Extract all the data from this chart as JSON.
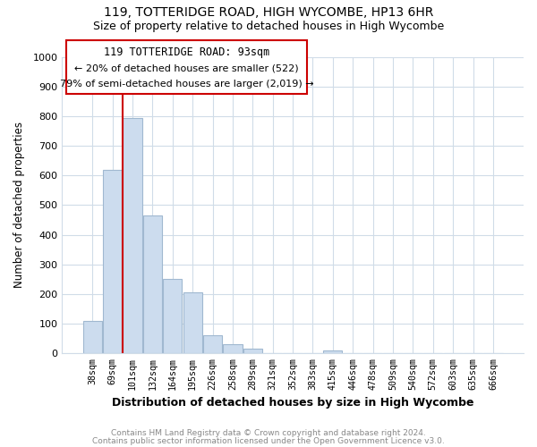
{
  "title": "119, TOTTERIDGE ROAD, HIGH WYCOMBE, HP13 6HR",
  "subtitle": "Size of property relative to detached houses in High Wycombe",
  "xlabel": "Distribution of detached houses by size in High Wycombe",
  "ylabel": "Number of detached properties",
  "bar_labels": [
    "38sqm",
    "69sqm",
    "101sqm",
    "132sqm",
    "164sqm",
    "195sqm",
    "226sqm",
    "258sqm",
    "289sqm",
    "321sqm",
    "352sqm",
    "383sqm",
    "415sqm",
    "446sqm",
    "478sqm",
    "509sqm",
    "540sqm",
    "572sqm",
    "603sqm",
    "635sqm",
    "666sqm"
  ],
  "bar_values": [
    110,
    620,
    795,
    465,
    250,
    205,
    60,
    30,
    15,
    0,
    0,
    0,
    10,
    0,
    0,
    0,
    0,
    0,
    0,
    0,
    0
  ],
  "bar_color": "#ccdcee",
  "bar_edge_color": "#a0b8d0",
  "vline_color": "#cc0000",
  "vline_x_idx": 2,
  "annotation_text_line1": "119 TOTTERIDGE ROAD: 93sqm",
  "annotation_text_line2": "← 20% of detached houses are smaller (522)",
  "annotation_text_line3": "79% of semi-detached houses are larger (2,019) →",
  "box_edge_color": "#cc0000",
  "ylim": [
    0,
    1000
  ],
  "yticks": [
    0,
    100,
    200,
    300,
    400,
    500,
    600,
    700,
    800,
    900,
    1000
  ],
  "footer1": "Contains HM Land Registry data © Crown copyright and database right 2024.",
  "footer2": "Contains public sector information licensed under the Open Government Licence v3.0.",
  "bg_color": "#ffffff",
  "grid_color": "#d0dce8",
  "title_fontsize": 10,
  "subtitle_fontsize": 9
}
